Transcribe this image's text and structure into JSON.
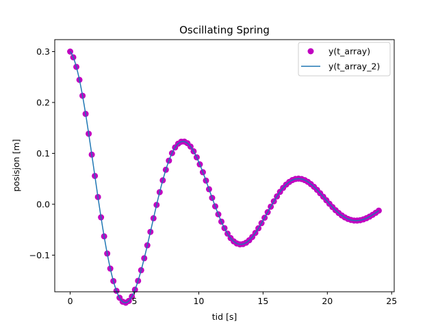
{
  "chart_data": {
    "type": "line",
    "title": "Oscillating Spring",
    "xlabel": "tid [s]",
    "ylabel": "posisjon [m]",
    "xlim": [
      -1.2,
      25.2
    ],
    "ylim": [
      -0.172,
      0.3235
    ],
    "x_ticks": [
      0,
      5,
      10,
      15,
      20,
      25
    ],
    "x_tick_labels": [
      "0",
      "5",
      "10",
      "15",
      "20",
      "25"
    ],
    "y_ticks": [
      -0.1,
      0.0,
      0.1,
      0.2,
      0.3
    ],
    "y_tick_labels": [
      "−0.1",
      "0.0",
      "0.1",
      "0.2",
      "0.3"
    ],
    "grid": false,
    "legend_position": "top-right",
    "series": [
      {
        "name": "y(t_array)",
        "kind": "scatter",
        "color": "#c000c0",
        "x_start": 0,
        "x_end": 24,
        "num_points": 101,
        "formula": "0.3*exp(-0.1*t)*cos(0.7*t)",
        "decay_rate": 0.1,
        "angular_frequency": 0.7,
        "amplitude": 0.3
      },
      {
        "name": "y(t_array_2)",
        "kind": "line",
        "color": "#1f77b4",
        "x_start": 0,
        "x_end": 24,
        "num_points": 400,
        "formula": "0.3*exp(-0.1*t)*cos(0.7*t)",
        "decay_rate": 0.1,
        "angular_frequency": 0.7,
        "amplitude": 0.3
      }
    ]
  }
}
